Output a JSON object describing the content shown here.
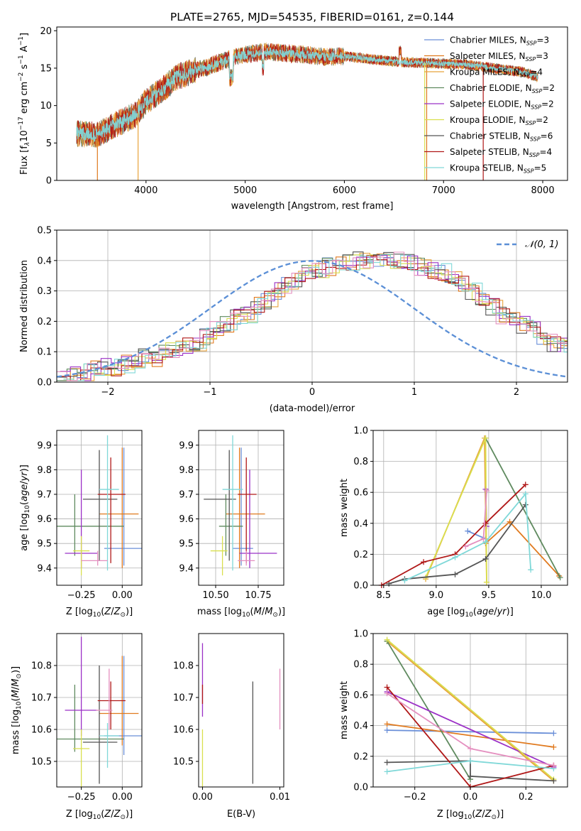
{
  "title": "PLATE=2765, MJD=54535, FIBERID=0161, z=0.144",
  "colors": {
    "c1": "#6a8fd8",
    "c2": "#e07a1f",
    "c3": "#e8a33c",
    "c4": "#5f8a5f",
    "c5": "#9b30c6",
    "c6": "#d9df4e",
    "c7": "#555555",
    "c8": "#b01818",
    "c9": "#7fd8d8",
    "pink": "#e48fbf",
    "gauss": "#5b8fd6"
  },
  "chart_data": [
    {
      "id": "spectrum",
      "type": "line",
      "xlabel": "wavelength [Angstrom, rest frame]",
      "ylabel": "Flux [fλ10⁻¹⁷ erg cm⁻² s⁻¹ A⁻¹]",
      "xlim": [
        3100,
        8250
      ],
      "ylim": [
        0,
        20.5
      ],
      "xticks": [
        4000,
        5000,
        6000,
        7000,
        8000
      ],
      "yticks": [
        0,
        5,
        10,
        15,
        20
      ],
      "grid": false,
      "legend_position": "right",
      "legend": [
        {
          "main": "Chabrier MILES, N",
          "sub": "SSP",
          "tail": "=3"
        },
        {
          "main": "Salpeter MILES, N",
          "sub": "SSP",
          "tail": "=3"
        },
        {
          "main": "Kroupa MILES, N",
          "sub": "SSP",
          "tail": "=4"
        },
        {
          "main": "Chabrier ELODIE, N",
          "sub": "SSP",
          "tail": "=2"
        },
        {
          "main": "Salpeter ELODIE, N",
          "sub": "SSP",
          "tail": "=2"
        },
        {
          "main": "Kroupa ELODIE, N",
          "sub": "SSP",
          "tail": "=2"
        },
        {
          "main": "Chabrier STELIB, N",
          "sub": "SSP",
          "tail": "=6"
        },
        {
          "main": "Salpeter STELIB, N",
          "sub": "SSP",
          "tail": "=4"
        },
        {
          "main": "Kroupa STELIB, N",
          "sub": "SSP",
          "tail": "=5"
        }
      ],
      "continuum": {
        "x": [
          3300,
          3500,
          3700,
          3900,
          4000,
          4100,
          4200,
          4300,
          4400,
          4500,
          4600,
          4700,
          4800,
          4900,
          5000,
          5200,
          5400,
          5600,
          5800,
          6000,
          6200,
          6400,
          6600,
          6800,
          7000,
          7200,
          7400,
          7600,
          7800,
          7950
        ],
        "y": [
          6.3,
          6.0,
          7.5,
          8.8,
          10.5,
          11.5,
          12.5,
          13.8,
          14.2,
          14.8,
          15.0,
          15.6,
          16.0,
          16.5,
          16.8,
          17.2,
          17.0,
          16.8,
          16.5,
          16.6,
          16.3,
          16.0,
          15.8,
          15.7,
          15.6,
          15.5,
          15.2,
          14.8,
          14.5,
          13.8
        ]
      }
    },
    {
      "id": "residuals",
      "type": "step",
      "xlabel": "(data-model)/error",
      "ylabel": "Normed distribution",
      "xlim": [
        -2.5,
        2.5
      ],
      "ylim": [
        0,
        0.5
      ],
      "xticks": [
        -2,
        -1,
        0,
        1,
        2
      ],
      "yticks": [
        0.0,
        0.1,
        0.2,
        0.3,
        0.4,
        0.5
      ],
      "grid": true,
      "legend": "𝒩(0, 1)",
      "bin_width": 0.1,
      "bin_start": -2.5,
      "base_hist": [
        0.02,
        0.02,
        0.03,
        0.04,
        0.05,
        0.05,
        0.06,
        0.07,
        0.08,
        0.08,
        0.1,
        0.11,
        0.12,
        0.13,
        0.15,
        0.17,
        0.19,
        0.21,
        0.22,
        0.25,
        0.27,
        0.3,
        0.32,
        0.34,
        0.36,
        0.37,
        0.38,
        0.39,
        0.39,
        0.4,
        0.4,
        0.4,
        0.4,
        0.4,
        0.39,
        0.38,
        0.37,
        0.36,
        0.34,
        0.32,
        0.3,
        0.27,
        0.25,
        0.22,
        0.21,
        0.19,
        0.17,
        0.15,
        0.13,
        0.12
      ]
    },
    {
      "id": "z-age",
      "type": "errorbar",
      "xlabel": "Z [log₁₀(Z/Z⊙)]",
      "ylabel": "age  [log₁₀(age/yr)]",
      "xlim": [
        -0.4,
        0.12
      ],
      "ylim": [
        9.33,
        9.96
      ],
      "xticks": [
        -0.25,
        0.0
      ],
      "yticks": [
        9.4,
        9.5,
        9.6,
        9.7,
        9.8,
        9.9
      ],
      "grid": true,
      "points": [
        {
          "c": "c1",
          "x": 0.01,
          "y": 9.48,
          "xerr": [
            0.12,
            0.12
          ],
          "yerr": [
            0.07,
            0.41
          ]
        },
        {
          "c": "c2",
          "x": 0.0,
          "y": 9.62,
          "xerr": [
            0.14,
            0.1
          ],
          "yerr": [
            0.22,
            0.27
          ]
        },
        {
          "c": "c4",
          "x": -0.29,
          "y": 9.57,
          "xerr": [
            0.14,
            0.3
          ],
          "yerr": [
            0.12,
            0.13
          ]
        },
        {
          "c": "c5",
          "x": -0.25,
          "y": 9.46,
          "xerr": [
            0.1,
            0.1
          ],
          "yerr": [
            0.06,
            0.34
          ]
        },
        {
          "c": "c6",
          "x": -0.25,
          "y": 9.47,
          "xerr": [
            0.05,
            0.05
          ],
          "yerr": [
            0.1,
            0.06
          ]
        },
        {
          "c": "c7",
          "x": -0.14,
          "y": 9.68,
          "xerr": [
            0.1,
            0.11
          ],
          "yerr": [
            0.25,
            0.2
          ]
        },
        {
          "c": "c8",
          "x": -0.07,
          "y": 9.7,
          "xerr": [
            0.08,
            0.09
          ],
          "yerr": [
            0.28,
            0.15
          ]
        },
        {
          "c": "c9",
          "x": -0.09,
          "y": 9.72,
          "xerr": [
            0.05,
            0.07
          ],
          "yerr": [
            0.33,
            0.22
          ]
        },
        {
          "c": "pink",
          "x": -0.15,
          "y": 9.43,
          "xerr": [
            0.1,
            0.06
          ],
          "yerr": [
            0.02,
            0.04
          ]
        }
      ]
    },
    {
      "id": "mass-age",
      "type": "errorbar",
      "xlabel": "mass [log₁₀(M/M⊙)]",
      "ylabel": "",
      "xlim": [
        10.4,
        10.9
      ],
      "ylim": [
        9.33,
        9.96
      ],
      "xticks": [
        10.5,
        10.75
      ],
      "xticklabels": [
        "10.50",
        "10.75"
      ],
      "yticks": [
        9.4,
        9.5,
        9.6,
        9.7,
        9.8,
        9.9
      ],
      "grid": true,
      "points": [
        {
          "c": "c1",
          "x": 10.65,
          "y": 9.48,
          "xerr": [
            0.05,
            0.07
          ],
          "yerr": [
            0.07,
            0.41
          ]
        },
        {
          "c": "c2",
          "x": 10.64,
          "y": 9.62,
          "xerr": [
            0.08,
            0.15
          ],
          "yerr": [
            0.22,
            0.27
          ]
        },
        {
          "c": "c4",
          "x": 10.56,
          "y": 9.57,
          "xerr": [
            0.04,
            0.1
          ],
          "yerr": [
            0.12,
            0.13
          ]
        },
        {
          "c": "c5",
          "x": 10.7,
          "y": 9.46,
          "xerr": [
            0.06,
            0.16
          ],
          "yerr": [
            0.06,
            0.34
          ]
        },
        {
          "c": "c6",
          "x": 10.54,
          "y": 9.47,
          "xerr": [
            0.07,
            0.03
          ],
          "yerr": [
            0.1,
            0.06
          ]
        },
        {
          "c": "c7",
          "x": 10.58,
          "y": 9.68,
          "xerr": [
            0.15,
            0.04
          ],
          "yerr": [
            0.25,
            0.2
          ]
        },
        {
          "c": "c8",
          "x": 10.68,
          "y": 9.7,
          "xerr": [
            0.05,
            0.06
          ],
          "yerr": [
            0.28,
            0.15
          ]
        },
        {
          "c": "c9",
          "x": 10.6,
          "y": 9.72,
          "xerr": [
            0.06,
            0.06
          ],
          "yerr": [
            0.33,
            0.22
          ]
        },
        {
          "c": "pink",
          "x": 10.68,
          "y": 9.43,
          "xerr": [
            0.05,
            0.05
          ],
          "yerr": [
            0.02,
            0.04
          ]
        }
      ]
    },
    {
      "id": "age-weight",
      "type": "line",
      "xlabel": "age  [log₁₀(age/yr)]",
      "ylabel": "mass weight",
      "xlim": [
        8.4,
        10.25
      ],
      "ylim": [
        0,
        1.0
      ],
      "xticks": [
        8.5,
        9.0,
        9.5,
        10.0
      ],
      "yticks": [
        0.0,
        0.2,
        0.4,
        0.6,
        0.8,
        1.0
      ],
      "grid": true,
      "series": [
        {
          "c": "c1",
          "x": [
            9.3,
            9.47
          ],
          "y": [
            0.35,
            0.3
          ]
        },
        {
          "c": "c2",
          "x": [
            9.47,
            9.7,
            10.17
          ],
          "y": [
            0.27,
            0.41,
            0.06
          ]
        },
        {
          "c": "c3",
          "x": [
            8.9,
            9.46,
            9.48
          ],
          "y": [
            0.04,
            0.95,
            0.02
          ]
        },
        {
          "c": "c4",
          "x": [
            9.47,
            10.18
          ],
          "y": [
            0.95,
            0.05
          ]
        },
        {
          "c": "c5",
          "x": [
            9.47,
            9.48
          ],
          "y": [
            0.62,
            0.38
          ]
        },
        {
          "c": "c6",
          "x": [
            8.9,
            9.47,
            9.48
          ],
          "y": [
            0.05,
            0.95,
            0.02
          ]
        },
        {
          "c": "c7",
          "x": [
            8.55,
            8.7,
            9.18,
            9.47,
            9.85
          ],
          "y": [
            0.01,
            0.04,
            0.07,
            0.17,
            0.52
          ]
        },
        {
          "c": "c8",
          "x": [
            8.48,
            8.88,
            9.18,
            9.47,
            9.85
          ],
          "y": [
            0.0,
            0.15,
            0.2,
            0.4,
            0.65
          ]
        },
        {
          "c": "c9",
          "x": [
            8.7,
            9.18,
            9.47,
            9.85,
            9.9
          ],
          "y": [
            0.03,
            0.18,
            0.28,
            0.59,
            0.1
          ]
        },
        {
          "c": "pink",
          "x": [
            9.28,
            9.45,
            9.48
          ],
          "y": [
            0.25,
            0.3,
            0.61
          ]
        }
      ]
    },
    {
      "id": "z-mass",
      "type": "errorbar",
      "xlabel": "Z [log₁₀(Z/Z⊙)]",
      "ylabel": "mass [log₁₀(M/M⊙)]",
      "xlim": [
        -0.4,
        0.12
      ],
      "ylim": [
        10.42,
        10.9
      ],
      "xticks": [
        -0.25,
        0.0
      ],
      "yticks": [
        10.5,
        10.6,
        10.7,
        10.8
      ],
      "grid": true,
      "points": [
        {
          "c": "c1",
          "x": 0.01,
          "y": 10.58,
          "xerr": [
            0.12,
            0.12
          ],
          "yerr": [
            0.06,
            0.25
          ]
        },
        {
          "c": "c2",
          "x": 0.0,
          "y": 10.65,
          "xerr": [
            0.14,
            0.1
          ],
          "yerr": [
            0.1,
            0.18
          ]
        },
        {
          "c": "c4",
          "x": -0.29,
          "y": 10.57,
          "xerr": [
            0.14,
            0.3
          ],
          "yerr": [
            0.04,
            0.17
          ]
        },
        {
          "c": "c5",
          "x": -0.25,
          "y": 10.66,
          "xerr": [
            0.1,
            0.1
          ],
          "yerr": [
            0.08,
            0.23
          ]
        },
        {
          "c": "c6",
          "x": -0.25,
          "y": 10.54,
          "xerr": [
            0.05,
            0.05
          ],
          "yerr": [
            0.12,
            0.06
          ]
        },
        {
          "c": "c7",
          "x": -0.14,
          "y": 10.56,
          "xerr": [
            0.1,
            0.11
          ],
          "yerr": [
            0.13,
            0.24
          ]
        },
        {
          "c": "c8",
          "x": -0.07,
          "y": 10.69,
          "xerr": [
            0.08,
            0.09
          ],
          "yerr": [
            0.09,
            0.06
          ]
        },
        {
          "c": "c9",
          "x": -0.09,
          "y": 10.58,
          "xerr": [
            0.05,
            0.07
          ],
          "yerr": [
            0.1,
            0.04
          ]
        },
        {
          "c": "pink",
          "x": -0.08,
          "y": 10.66,
          "xerr": [
            0.08,
            0.02
          ],
          "yerr": [
            0.06,
            0.13
          ]
        }
      ]
    },
    {
      "id": "ebv-mass",
      "type": "errorbar",
      "xlabel": "E(B-V)",
      "ylabel": "",
      "xlim": [
        -0.0005,
        0.0105
      ],
      "ylim": [
        10.42,
        10.9
      ],
      "xticks": [
        0.0,
        0.01
      ],
      "xticklabels": [
        "0.00",
        "0.01"
      ],
      "yticks": [
        10.5,
        10.6,
        10.7,
        10.8
      ],
      "grid": false,
      "points": [
        {
          "c": "c5",
          "x": 0.0,
          "y": 10.7,
          "xerr": [
            0,
            0
          ],
          "yerr": [
            0.06,
            0.17
          ]
        },
        {
          "c": "c6",
          "x": 0.0,
          "y": 10.54,
          "xerr": [
            0,
            0
          ],
          "yerr": [
            0.12,
            0.06
          ]
        },
        {
          "c": "c8",
          "x": 0.0,
          "y": 10.7,
          "xerr": [
            0,
            0
          ],
          "yerr": [
            0.02,
            0.04
          ]
        },
        {
          "c": "c7",
          "x": 0.0065,
          "y": 10.6,
          "xerr": [
            0,
            0
          ],
          "yerr": [
            0.17,
            0.15
          ]
        },
        {
          "c": "pink",
          "x": 0.01,
          "y": 10.7,
          "xerr": [
            0,
            0
          ],
          "yerr": [
            0.1,
            0.09
          ]
        }
      ]
    },
    {
      "id": "z-weight",
      "type": "line",
      "xlabel": "Z [log₁₀(Z/Z⊙)]",
      "ylabel": "mass weight",
      "xlim": [
        -0.35,
        0.35
      ],
      "ylim": [
        0,
        1.0
      ],
      "xticks": [
        -0.2,
        0.0,
        0.2
      ],
      "yticks": [
        0.0,
        0.2,
        0.4,
        0.6,
        0.8,
        1.0
      ],
      "grid": true,
      "series": [
        {
          "c": "c1",
          "x": [
            -0.3,
            0.3
          ],
          "y": [
            0.37,
            0.35
          ]
        },
        {
          "c": "c2",
          "x": [
            -0.3,
            0.3
          ],
          "y": [
            0.41,
            0.26
          ]
        },
        {
          "c": "c3",
          "x": [
            -0.3,
            0.3
          ],
          "y": [
            0.95,
            0.04
          ]
        },
        {
          "c": "c4",
          "x": [
            -0.3,
            0.0
          ],
          "y": [
            0.95,
            0.05
          ]
        },
        {
          "c": "c5",
          "x": [
            -0.3,
            0.3
          ],
          "y": [
            0.62,
            0.13
          ]
        },
        {
          "c": "c6",
          "x": [
            -0.3,
            0.3
          ],
          "y": [
            0.96,
            0.05
          ]
        },
        {
          "c": "c7",
          "x": [
            -0.3,
            0.0,
            0.0,
            0.3
          ],
          "y": [
            0.16,
            0.17,
            0.07,
            0.04
          ]
        },
        {
          "c": "c8",
          "x": [
            -0.3,
            0.0,
            0.3
          ],
          "y": [
            0.65,
            0.0,
            0.14
          ]
        },
        {
          "c": "c9",
          "x": [
            -0.3,
            0.0,
            0.3
          ],
          "y": [
            0.1,
            0.17,
            0.12
          ]
        },
        {
          "c": "pink",
          "x": [
            -0.3,
            0.0,
            0.3
          ],
          "y": [
            0.61,
            0.25,
            0.14
          ]
        }
      ]
    }
  ]
}
